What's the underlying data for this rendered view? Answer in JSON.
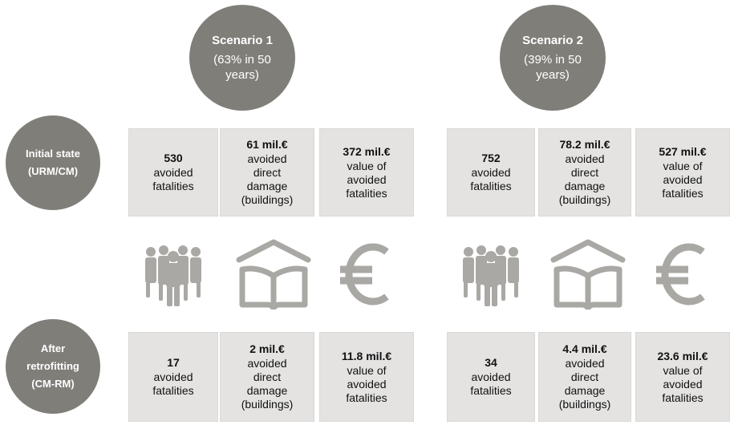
{
  "scenarios": [
    {
      "title": "Scenario 1",
      "subtitle": "(63% in 50 years)"
    },
    {
      "title": "Scenario 2",
      "subtitle": "(39% in 50 years)"
    }
  ],
  "row_labels": [
    {
      "lines": [
        "Initial state",
        "(URM/CM)"
      ]
    },
    {
      "lines": [
        "After",
        "retrofitting",
        "(CM-RM)"
      ]
    }
  ],
  "descriptions": {
    "fatalities": "avoided\nfatalities",
    "damage": "avoided\ndirect\ndamage\n(buildings)",
    "value": "value of\navoided\nfatalities"
  },
  "values": {
    "s1_initial": {
      "fatalities": "530",
      "damage": "61 mil.€",
      "value": "372 mil.€"
    },
    "s1_after": {
      "fatalities": "17",
      "damage": "2 mil.€",
      "value": "11.8 mil.€"
    },
    "s2_initial": {
      "fatalities": "752",
      "damage": "78.2 mil.€",
      "value": "527 mil.€"
    },
    "s2_after": {
      "fatalities": "34",
      "damage": "4.4 mil.€",
      "value": "23.6 mil.€"
    }
  },
  "icons": [
    "people-group-icon",
    "house-book-icon",
    "euro-icon"
  ],
  "colors": {
    "circle": "#807e79",
    "box": "#e4e3e2",
    "icon": "#a9a8a4"
  }
}
